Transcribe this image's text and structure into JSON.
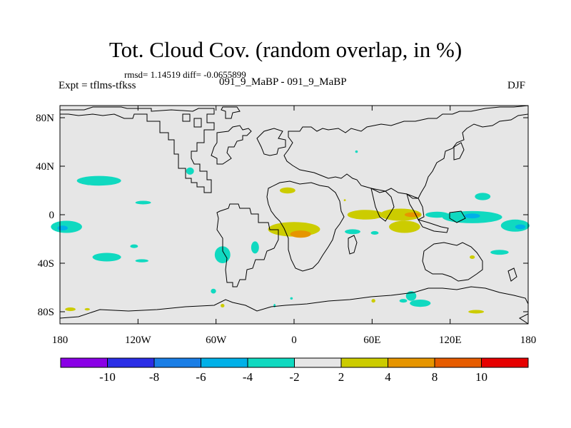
{
  "title": "Tot. Cloud Cov. (random overlap, in %)",
  "stats": "rmsd= 1.14519 diff= -0.0655899",
  "experiment": "Expt = tflms-tfkss",
  "case": "091_9_MaBP - 091_9_MaBP",
  "season": "DJF",
  "chart_data": {
    "type": "heatmap",
    "title": "Tot. Cloud Cov. (random overlap, in %)",
    "xlabel": "",
    "ylabel": "",
    "xlim": [
      -180,
      180
    ],
    "ylim": [
      -90,
      90
    ],
    "x_ticks": [
      {
        "value": -180,
        "label": "180"
      },
      {
        "value": -120,
        "label": "120W"
      },
      {
        "value": -60,
        "label": "60W"
      },
      {
        "value": 0,
        "label": "0"
      },
      {
        "value": 60,
        "label": "60E"
      },
      {
        "value": 120,
        "label": "120E"
      },
      {
        "value": 180,
        "label": "180"
      }
    ],
    "y_ticks": [
      {
        "value": 80,
        "label": "80N"
      },
      {
        "value": 40,
        "label": "40N"
      },
      {
        "value": 0,
        "label": "0"
      },
      {
        "value": -40,
        "label": "40S"
      },
      {
        "value": -80,
        "label": "80S"
      }
    ],
    "colorbar": {
      "colors": [
        "#8a00e6",
        "#2b2ee6",
        "#1a7ee6",
        "#00b0e8",
        "#10d9c0",
        "#e6e6e6",
        "#cccc00",
        "#e69500",
        "#e65c00",
        "#e60000"
      ],
      "labels": [
        "-10",
        "-8",
        "-6",
        "-4",
        "-2",
        "2",
        "4",
        "8",
        "10"
      ]
    },
    "anomalies": [
      {
        "lon": -150,
        "lat": 28,
        "rx": 17,
        "ry": 4,
        "level": -2
      },
      {
        "lon": -116,
        "lat": 10,
        "rx": 6,
        "ry": 1.5,
        "level": -2
      },
      {
        "lon": -80,
        "lat": 36,
        "rx": 3,
        "ry": 3,
        "level": -2
      },
      {
        "lon": -175,
        "lat": -10,
        "rx": 12,
        "ry": 5,
        "level": -2
      },
      {
        "lon": -178,
        "lat": -11,
        "rx": 4,
        "ry": 2,
        "level": -4
      },
      {
        "lon": -144,
        "lat": -35,
        "rx": 11,
        "ry": 3.5,
        "level": -2
      },
      {
        "lon": -123,
        "lat": -26,
        "rx": 3,
        "ry": 1.5,
        "level": -2
      },
      {
        "lon": -117,
        "lat": -38,
        "rx": 5,
        "ry": 1.3,
        "level": -2
      },
      {
        "lon": -172,
        "lat": -78,
        "rx": 4,
        "ry": 1.5,
        "level": 2
      },
      {
        "lon": -159,
        "lat": -78,
        "rx": 2,
        "ry": 1,
        "level": 2
      },
      {
        "lon": -55,
        "lat": -33,
        "rx": 6,
        "ry": 7,
        "level": -2
      },
      {
        "lon": -62,
        "lat": -63,
        "rx": 2,
        "ry": 2,
        "level": -2
      },
      {
        "lon": -30,
        "lat": -27,
        "rx": 3,
        "ry": 5,
        "level": -2
      },
      {
        "lon": -2,
        "lat": -69,
        "rx": 1,
        "ry": 1,
        "level": -2
      },
      {
        "lon": -5,
        "lat": 20,
        "rx": 6,
        "ry": 2.5,
        "level": 2
      },
      {
        "lon": -55,
        "lat": -75,
        "rx": 1.5,
        "ry": 1.5,
        "level": 2
      },
      {
        "lon": 0,
        "lat": -12,
        "rx": 20,
        "ry": 6,
        "level": 2
      },
      {
        "lon": 5,
        "lat": -16,
        "rx": 8,
        "ry": 3,
        "level": 4
      },
      {
        "lon": 55,
        "lat": 0,
        "rx": 14,
        "ry": 4,
        "level": 2
      },
      {
        "lon": 82,
        "lat": 0,
        "rx": 16,
        "ry": 5,
        "level": 2
      },
      {
        "lon": 91,
        "lat": 0,
        "rx": 6,
        "ry": 2,
        "level": 4
      },
      {
        "lon": 85,
        "lat": -10,
        "rx": 12,
        "ry": 5,
        "level": 2
      },
      {
        "lon": 45,
        "lat": -14,
        "rx": 6,
        "ry": 2,
        "level": -2
      },
      {
        "lon": 62,
        "lat": -15,
        "rx": 3,
        "ry": 1.5,
        "level": -2
      },
      {
        "lon": 145,
        "lat": 15,
        "rx": 6,
        "ry": 3,
        "level": -2
      },
      {
        "lon": 110,
        "lat": 0,
        "rx": 9,
        "ry": 2.5,
        "level": -2
      },
      {
        "lon": 137,
        "lat": -2,
        "rx": 23,
        "ry": 5,
        "level": -2
      },
      {
        "lon": 137,
        "lat": -1,
        "rx": 6,
        "ry": 2,
        "level": -4
      },
      {
        "lon": 170,
        "lat": -9,
        "rx": 11,
        "ry": 5,
        "level": -2
      },
      {
        "lon": 174,
        "lat": -10,
        "rx": 4,
        "ry": 2,
        "level": -4
      },
      {
        "lon": 158,
        "lat": -31,
        "rx": 7,
        "ry": 2,
        "level": -2
      },
      {
        "lon": 137,
        "lat": -35,
        "rx": 2,
        "ry": 1.5,
        "level": 2
      },
      {
        "lon": 90,
        "lat": -67,
        "rx": 4,
        "ry": 4,
        "level": -2
      },
      {
        "lon": 97,
        "lat": -73,
        "rx": 8,
        "ry": 3,
        "level": -2
      },
      {
        "lon": 84,
        "lat": -71,
        "rx": 3,
        "ry": 1.5,
        "level": -2
      },
      {
        "lon": 61,
        "lat": -71,
        "rx": 1.5,
        "ry": 1.5,
        "level": 2
      },
      {
        "lon": 140,
        "lat": -80,
        "rx": 6,
        "ry": 1.5,
        "level": 2
      },
      {
        "lon": 48,
        "lat": 52,
        "rx": 1,
        "ry": 1,
        "level": -2
      },
      {
        "lon": 39,
        "lat": 12,
        "rx": 0.8,
        "ry": 0.8,
        "level": 2
      },
      {
        "lon": -15,
        "lat": -75,
        "rx": 0.8,
        "ry": 1.5,
        "level": -2
      }
    ]
  }
}
